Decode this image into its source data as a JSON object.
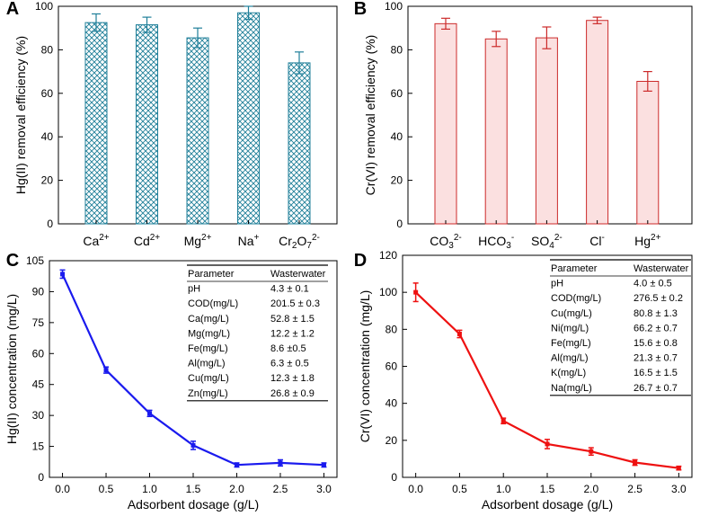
{
  "colors": {
    "teal": "#1f7f99",
    "red": "#cc2a2a",
    "pink_fill": "#fbe0e0",
    "blue": "#1a1aee",
    "red_line": "#ee1111"
  },
  "chart_data": [
    {
      "panel": "A",
      "type": "bar",
      "ylabel": "Hg(II) removal efficiency (%)",
      "ylim": [
        0,
        100
      ],
      "yticks": [
        "0",
        "20",
        "40",
        "60",
        "80",
        "100"
      ],
      "categories": [
        {
          "base": "Ca",
          "sup": "2+"
        },
        {
          "base": "Cd",
          "sup": "2+"
        },
        {
          "base": "Mg",
          "sup": "2+"
        },
        {
          "base": "Na",
          "sup": "+"
        },
        {
          "base": "Cr",
          "sub": "2",
          "mid": "O",
          "sub2": "7",
          "sup": "2-"
        }
      ],
      "values": [
        92.5,
        91.5,
        85.5,
        97,
        74
      ],
      "errors": [
        4,
        3.5,
        4.5,
        3,
        5
      ],
      "pattern": "crosshatch"
    },
    {
      "panel": "B",
      "type": "bar",
      "ylabel": "Cr(VI) removal efficiency (%)",
      "ylim": [
        0,
        100
      ],
      "yticks": [
        "0",
        "20",
        "40",
        "60",
        "80",
        "100"
      ],
      "categories": [
        {
          "base": "CO",
          "sub": "3",
          "sup": "2-"
        },
        {
          "base": "HCO",
          "sub": "3",
          "sup": "-"
        },
        {
          "base": "SO",
          "sub": "4",
          "sup": "2-"
        },
        {
          "base": "Cl",
          "sup": "-"
        },
        {
          "base": "Hg",
          "sup": "2+"
        }
      ],
      "values": [
        92,
        85,
        85.5,
        93.5,
        65.5
      ],
      "errors": [
        2.5,
        3.5,
        5,
        1.5,
        4.5
      ],
      "pattern": "solid"
    },
    {
      "panel": "C",
      "type": "line",
      "xlabel": "Adsorbent dosage (g/L)",
      "ylabel": "Hg(II) concentration (mg/L)",
      "xlim": [
        -0.15,
        3.15
      ],
      "ylim": [
        0,
        105
      ],
      "xticks": [
        "0.0",
        "0.5",
        "1.0",
        "1.5",
        "2.0",
        "2.5",
        "3.0"
      ],
      "yticks": [
        "0",
        "15",
        "30",
        "45",
        "60",
        "75",
        "90",
        "105"
      ],
      "x": [
        0,
        0.5,
        1,
        1.5,
        2,
        2.5,
        3
      ],
      "y": [
        98.5,
        52,
        31,
        15.5,
        6,
        7,
        6
      ],
      "errors": [
        2,
        1.5,
        1.5,
        2,
        1,
        1.5,
        1
      ],
      "table": {
        "headers": [
          "Parameter",
          "Wasterwater"
        ],
        "rows": [
          [
            "pH",
            "4.3 ± 0.1"
          ],
          [
            "COD(mg/L)",
            "201.5 ± 0.3"
          ],
          [
            "Ca(mg/L)",
            "52.8 ± 1.5"
          ],
          [
            "Mg(mg/L)",
            "12.2 ± 1.2"
          ],
          [
            "Fe(mg/L)",
            "8.6 ±0.5"
          ],
          [
            "Al(mg/L)",
            "6.3 ± 0.5"
          ],
          [
            "Cu(mg/L)",
            "12.3 ± 1.8"
          ],
          [
            "Zn(mg/L)",
            "26.8 ± 0.9"
          ]
        ]
      }
    },
    {
      "panel": "D",
      "type": "line",
      "xlabel": "Adsorbent dosage (g/L)",
      "ylabel": "Cr(VI) concentration (mg/L)",
      "xlim": [
        -0.15,
        3.15
      ],
      "ylim": [
        0,
        120
      ],
      "xticks": [
        "0.0",
        "0.5",
        "1.0",
        "1.5",
        "2.0",
        "2.5",
        "3.0"
      ],
      "yticks": [
        "0",
        "20",
        "40",
        "60",
        "80",
        "100",
        "120"
      ],
      "x": [
        0,
        0.5,
        1,
        1.5,
        2,
        2.5,
        3
      ],
      "y": [
        100,
        77.5,
        30.5,
        18,
        14,
        8,
        5
      ],
      "errors": [
        5,
        2,
        1.5,
        2.5,
        2,
        1.5,
        1
      ],
      "table": {
        "headers": [
          "Parameter",
          "Wasterwater"
        ],
        "rows": [
          [
            "pH",
            "4.0 ± 0.5"
          ],
          [
            "COD(mg/L)",
            "276.5 ± 0.2"
          ],
          [
            "Cu(mg/L)",
            "80.8 ± 1.3"
          ],
          [
            "Ni(mg/L)",
            "66.2 ± 0.7"
          ],
          [
            "Fe(mg/L)",
            "15.6 ± 0.8"
          ],
          [
            "Al(mg/L)",
            "21.3 ± 0.7"
          ],
          [
            "K(mg/L)",
            "16.5 ± 1.5"
          ],
          [
            "Na(mg/L)",
            "26.7 ± 0.7"
          ]
        ]
      }
    }
  ]
}
